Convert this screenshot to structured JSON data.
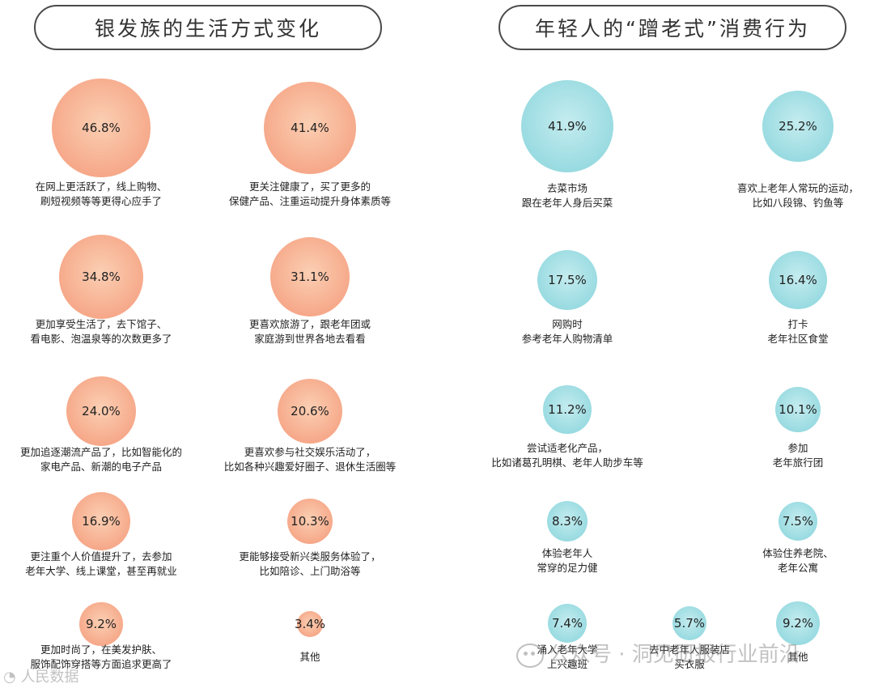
{
  "panels": [
    {
      "title": "银发族的生活方式变化"
    },
    {
      "title": "年轻人的“蹭老式”消费行为"
    }
  ],
  "chart_data": [
    {
      "type": "bubble",
      "title": "银发族的生活方式变化",
      "color": "#f6a98a",
      "items": [
        {
          "value": 46.8,
          "value_label": "46.8%",
          "lines": [
            "在网上更活跃了，线上购物、",
            "刷短视频等等更得心应手了"
          ]
        },
        {
          "value": 41.4,
          "value_label": "41.4%",
          "lines": [
            "更关注健康了，买了更多的",
            "保健产品、注重运动提升身体素质等"
          ]
        },
        {
          "value": 34.8,
          "value_label": "34.8%",
          "lines": [
            "更加享受生活了，去下馆子、",
            "看电影、泡温泉等的次数更多了"
          ]
        },
        {
          "value": 31.1,
          "value_label": "31.1%",
          "lines": [
            "更喜欢旅游了，跟老年团或",
            "家庭游到世界各地去看看"
          ]
        },
        {
          "value": 24.0,
          "value_label": "24.0%",
          "lines": [
            "更加追逐潮流产品了，比如智能化的",
            "家电产品、新潮的电子产品"
          ]
        },
        {
          "value": 20.6,
          "value_label": "20.6%",
          "lines": [
            "更喜欢参与社交娱乐活动了，",
            "比如各种兴趣爱好圈子、退休生活圈等"
          ]
        },
        {
          "value": 16.9,
          "value_label": "16.9%",
          "lines": [
            "更注重个人价值提升了，去参加",
            "老年大学、线上课堂，甚至再就业"
          ]
        },
        {
          "value": 10.3,
          "value_label": "10.3%",
          "lines": [
            "更能够接受新兴类服务体验了，",
            "比如陪诊、上门助浴等"
          ]
        },
        {
          "value": 9.2,
          "value_label": "9.2%",
          "lines": [
            "更加时尚了，在美发护肤、",
            "服饰配饰穿搭等方面追求更高了"
          ]
        },
        {
          "value": 3.4,
          "value_label": "3.4%",
          "lines": [
            "其他"
          ]
        }
      ]
    },
    {
      "type": "bubble",
      "title": "年轻人的“蹭老式”消费行为",
      "color": "#99dbe1",
      "items": [
        {
          "value": 41.9,
          "value_label": "41.9%",
          "lines": [
            "去菜市场",
            "跟在老年人身后买菜"
          ]
        },
        {
          "value": 25.2,
          "value_label": "25.2%",
          "lines": [
            "喜欢上老年人常玩的运动，",
            "比如八段锦、钓鱼等"
          ]
        },
        {
          "value": 17.5,
          "value_label": "17.5%",
          "lines": [
            "网购时",
            "参考老年人购物清单"
          ]
        },
        {
          "value": 16.4,
          "value_label": "16.4%",
          "lines": [
            "打卡",
            "老年社区食堂"
          ]
        },
        {
          "value": 11.2,
          "value_label": "11.2%",
          "lines": [
            "尝试适老化产品，",
            "比如诸葛孔明棋、老年人助步车等"
          ]
        },
        {
          "value": 10.1,
          "value_label": "10.1%",
          "lines": [
            "参加",
            "老年旅行团"
          ]
        },
        {
          "value": 8.3,
          "value_label": "8.3%",
          "lines": [
            "体验老年人",
            "常穿的足力健"
          ]
        },
        {
          "value": 7.5,
          "value_label": "7.5%",
          "lines": [
            "体验住养老院、",
            "老年公寓"
          ]
        },
        {
          "value": 7.4,
          "value_label": "7.4%",
          "lines": [
            "涌入老年大学",
            "上兴趣班"
          ]
        },
        {
          "value": 5.7,
          "value_label": "5.7%",
          "lines": [
            "去中老年人服装店",
            "买衣服"
          ]
        },
        {
          "value": 9.2,
          "value_label": "9.2%",
          "lines": [
            "其他"
          ]
        }
      ]
    }
  ],
  "watermarks": {
    "main": "公众号 · 洞见研报行业前沿",
    "corner": "人民数据"
  }
}
